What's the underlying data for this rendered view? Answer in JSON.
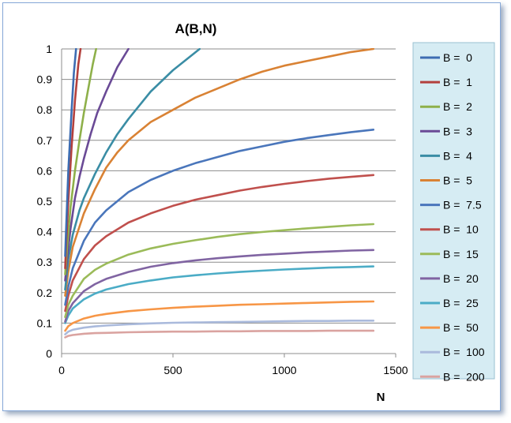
{
  "chart_data": {
    "type": "line",
    "title": "A(B,N)",
    "xlabel": "N",
    "ylabel": "",
    "xlim": [
      0,
      1500
    ],
    "ylim": [
      0,
      1
    ],
    "x_ticks": [
      "0",
      "500",
      "1000",
      "1500"
    ],
    "y_ticks": [
      "0",
      "0.1",
      "0.2",
      "0.3",
      "0.4",
      "0.5",
      "0.6",
      "0.7",
      "0.8",
      "0.9",
      "1"
    ],
    "grid": "horizontal",
    "legend_position": "right",
    "series": [
      {
        "name": "B =  0",
        "color": "#3d6cb2",
        "x": [
          16,
          20,
          30,
          45,
          55,
          65
        ],
        "y": [
          0.32,
          0.4,
          0.6,
          0.8,
          0.92,
          1.0
        ]
      },
      {
        "name": "B =  1",
        "color": "#b3403d",
        "x": [
          16,
          20,
          30,
          45,
          60,
          75,
          85
        ],
        "y": [
          0.28,
          0.35,
          0.5,
          0.68,
          0.83,
          0.95,
          1.0
        ]
      },
      {
        "name": "B =  2",
        "color": "#8eb04a",
        "x": [
          16,
          25,
          40,
          60,
          80,
          100,
          120,
          140,
          155
        ],
        "y": [
          0.26,
          0.35,
          0.48,
          0.6,
          0.7,
          0.79,
          0.87,
          0.95,
          1.0
        ]
      },
      {
        "name": "B =  3",
        "color": "#6a4a96",
        "x": [
          16,
          25,
          40,
          60,
          80,
          100,
          130,
          160,
          200,
          250,
          300
        ],
        "y": [
          0.24,
          0.31,
          0.41,
          0.51,
          0.58,
          0.64,
          0.72,
          0.79,
          0.86,
          0.94,
          1.0
        ]
      },
      {
        "name": "B =  4",
        "color": "#3a8da5",
        "x": [
          16,
          30,
          50,
          80,
          100,
          150,
          200,
          250,
          300,
          400,
          500,
          620
        ],
        "y": [
          0.21,
          0.31,
          0.39,
          0.47,
          0.51,
          0.59,
          0.66,
          0.72,
          0.77,
          0.86,
          0.93,
          1.0
        ]
      },
      {
        "name": "B =  5",
        "color": "#d98234",
        "x": [
          16,
          30,
          50,
          100,
          150,
          200,
          250,
          300,
          400,
          500,
          600,
          700,
          800,
          900,
          1000,
          1100,
          1200,
          1300,
          1400
        ],
        "y": [
          0.19,
          0.27,
          0.35,
          0.46,
          0.54,
          0.61,
          0.66,
          0.7,
          0.76,
          0.8,
          0.84,
          0.87,
          0.9,
          0.925,
          0.945,
          0.96,
          0.975,
          0.99,
          1.0
        ]
      },
      {
        "name": "B =  7.5",
        "color": "#4a76bb",
        "x": [
          16,
          30,
          50,
          100,
          150,
          200,
          300,
          400,
          500,
          600,
          700,
          800,
          900,
          1000,
          1100,
          1200,
          1300,
          1400
        ],
        "y": [
          0.16,
          0.22,
          0.28,
          0.37,
          0.43,
          0.47,
          0.53,
          0.57,
          0.6,
          0.625,
          0.645,
          0.665,
          0.68,
          0.695,
          0.707,
          0.717,
          0.727,
          0.735
        ]
      },
      {
        "name": "B =  10",
        "color": "#c0504d",
        "x": [
          16,
          30,
          50,
          100,
          150,
          200,
          300,
          400,
          500,
          600,
          700,
          800,
          900,
          1000,
          1100,
          1200,
          1300,
          1400
        ],
        "y": [
          0.14,
          0.19,
          0.24,
          0.31,
          0.355,
          0.385,
          0.43,
          0.46,
          0.485,
          0.505,
          0.52,
          0.535,
          0.547,
          0.557,
          0.566,
          0.574,
          0.58,
          0.586
        ]
      },
      {
        "name": "B =  15",
        "color": "#9bbb59",
        "x": [
          16,
          30,
          50,
          100,
          150,
          200,
          300,
          400,
          500,
          600,
          700,
          800,
          900,
          1000,
          1100,
          1200,
          1300,
          1400
        ],
        "y": [
          0.12,
          0.16,
          0.19,
          0.245,
          0.275,
          0.295,
          0.325,
          0.345,
          0.36,
          0.372,
          0.383,
          0.392,
          0.399,
          0.405,
          0.411,
          0.416,
          0.421,
          0.425
        ]
      },
      {
        "name": "B =  20",
        "color": "#8064a2",
        "x": [
          16,
          30,
          50,
          100,
          150,
          200,
          300,
          400,
          500,
          600,
          700,
          800,
          900,
          1000,
          1100,
          1200,
          1300,
          1400
        ],
        "y": [
          0.105,
          0.14,
          0.165,
          0.205,
          0.228,
          0.245,
          0.268,
          0.285,
          0.297,
          0.306,
          0.313,
          0.319,
          0.324,
          0.328,
          0.332,
          0.335,
          0.338,
          0.34
        ]
      },
      {
        "name": "B =  25",
        "color": "#4bacc6",
        "x": [
          16,
          30,
          50,
          100,
          150,
          200,
          300,
          400,
          500,
          600,
          700,
          800,
          900,
          1000,
          1100,
          1200,
          1300,
          1400
        ],
        "y": [
          0.1,
          0.125,
          0.148,
          0.178,
          0.197,
          0.21,
          0.228,
          0.24,
          0.25,
          0.257,
          0.263,
          0.268,
          0.272,
          0.276,
          0.279,
          0.282,
          0.284,
          0.286
        ]
      },
      {
        "name": "B =  50",
        "color": "#f79646",
        "x": [
          16,
          30,
          50,
          100,
          150,
          200,
          300,
          400,
          500,
          600,
          700,
          800,
          900,
          1000,
          1100,
          1200,
          1300,
          1400
        ],
        "y": [
          0.075,
          0.09,
          0.1,
          0.115,
          0.124,
          0.13,
          0.139,
          0.145,
          0.15,
          0.154,
          0.157,
          0.16,
          0.162,
          0.164,
          0.166,
          0.168,
          0.17,
          0.171
        ]
      },
      {
        "name": "B =  100",
        "color": "#aabadc",
        "x": [
          16,
          30,
          50,
          100,
          150,
          200,
          300,
          400,
          500,
          600,
          700,
          800,
          900,
          1000,
          1100,
          1200,
          1300,
          1400
        ],
        "y": [
          0.063,
          0.072,
          0.078,
          0.085,
          0.089,
          0.092,
          0.096,
          0.099,
          0.101,
          0.102,
          0.103,
          0.104,
          0.105,
          0.106,
          0.107,
          0.107,
          0.108,
          0.108
        ]
      },
      {
        "name": "B =  200",
        "color": "#daa3a0",
        "x": [
          16,
          30,
          50,
          100,
          150,
          200,
          300,
          400,
          500,
          600,
          700,
          800,
          900,
          1000,
          1100,
          1200,
          1300,
          1400
        ],
        "y": [
          0.053,
          0.058,
          0.061,
          0.065,
          0.067,
          0.068,
          0.07,
          0.071,
          0.072,
          0.072,
          0.073,
          0.073,
          0.074,
          0.074,
          0.074,
          0.075,
          0.075,
          0.075
        ]
      }
    ]
  }
}
